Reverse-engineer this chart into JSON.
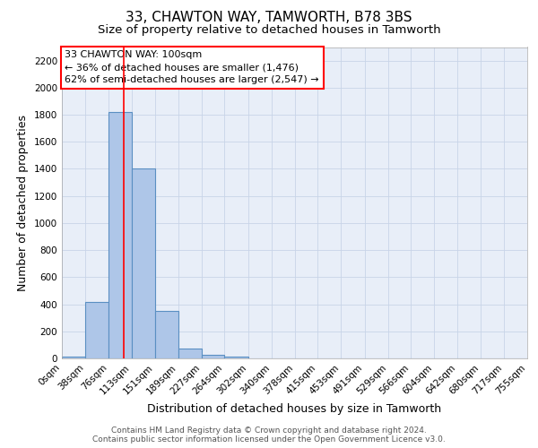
{
  "title_line1": "33, CHAWTON WAY, TAMWORTH, B78 3BS",
  "title_line2": "Size of property relative to detached houses in Tamworth",
  "xlabel": "Distribution of detached houses by size in Tamworth",
  "ylabel": "Number of detached properties",
  "footer_line1": "Contains HM Land Registry data © Crown copyright and database right 2024.",
  "footer_line2": "Contains public sector information licensed under the Open Government Licence v3.0.",
  "bar_edges": [
    0,
    38,
    76,
    113,
    151,
    189,
    227,
    264,
    302,
    340,
    378,
    415,
    453,
    491,
    529,
    566,
    604,
    642,
    680,
    717,
    755
  ],
  "bar_heights": [
    15,
    420,
    1820,
    1400,
    350,
    75,
    25,
    15,
    0,
    0,
    0,
    0,
    0,
    0,
    0,
    0,
    0,
    0,
    0,
    0
  ],
  "bar_color": "#aec6e8",
  "bar_edgecolor": "#5a8fc2",
  "bar_linewidth": 0.8,
  "grid_color": "#c8d4e8",
  "bg_color": "#e8eef8",
  "annotation_text": "33 CHAWTON WAY: 100sqm\n← 36% of detached houses are smaller (1,476)\n62% of semi-detached houses are larger (2,547) →",
  "red_line_x": 100,
  "ylim": [
    0,
    2300
  ],
  "yticks": [
    0,
    200,
    400,
    600,
    800,
    1000,
    1200,
    1400,
    1600,
    1800,
    2000,
    2200
  ],
  "xtick_labels": [
    "0sqm",
    "38sqm",
    "76sqm",
    "113sqm",
    "151sqm",
    "189sqm",
    "227sqm",
    "264sqm",
    "302sqm",
    "340sqm",
    "378sqm",
    "415sqm",
    "453sqm",
    "491sqm",
    "529sqm",
    "566sqm",
    "604sqm",
    "642sqm",
    "680sqm",
    "717sqm",
    "755sqm"
  ],
  "title_fontsize": 11,
  "subtitle_fontsize": 9.5,
  "label_fontsize": 9,
  "tick_fontsize": 7.5,
  "annotation_fontsize": 8,
  "footer_fontsize": 6.5
}
